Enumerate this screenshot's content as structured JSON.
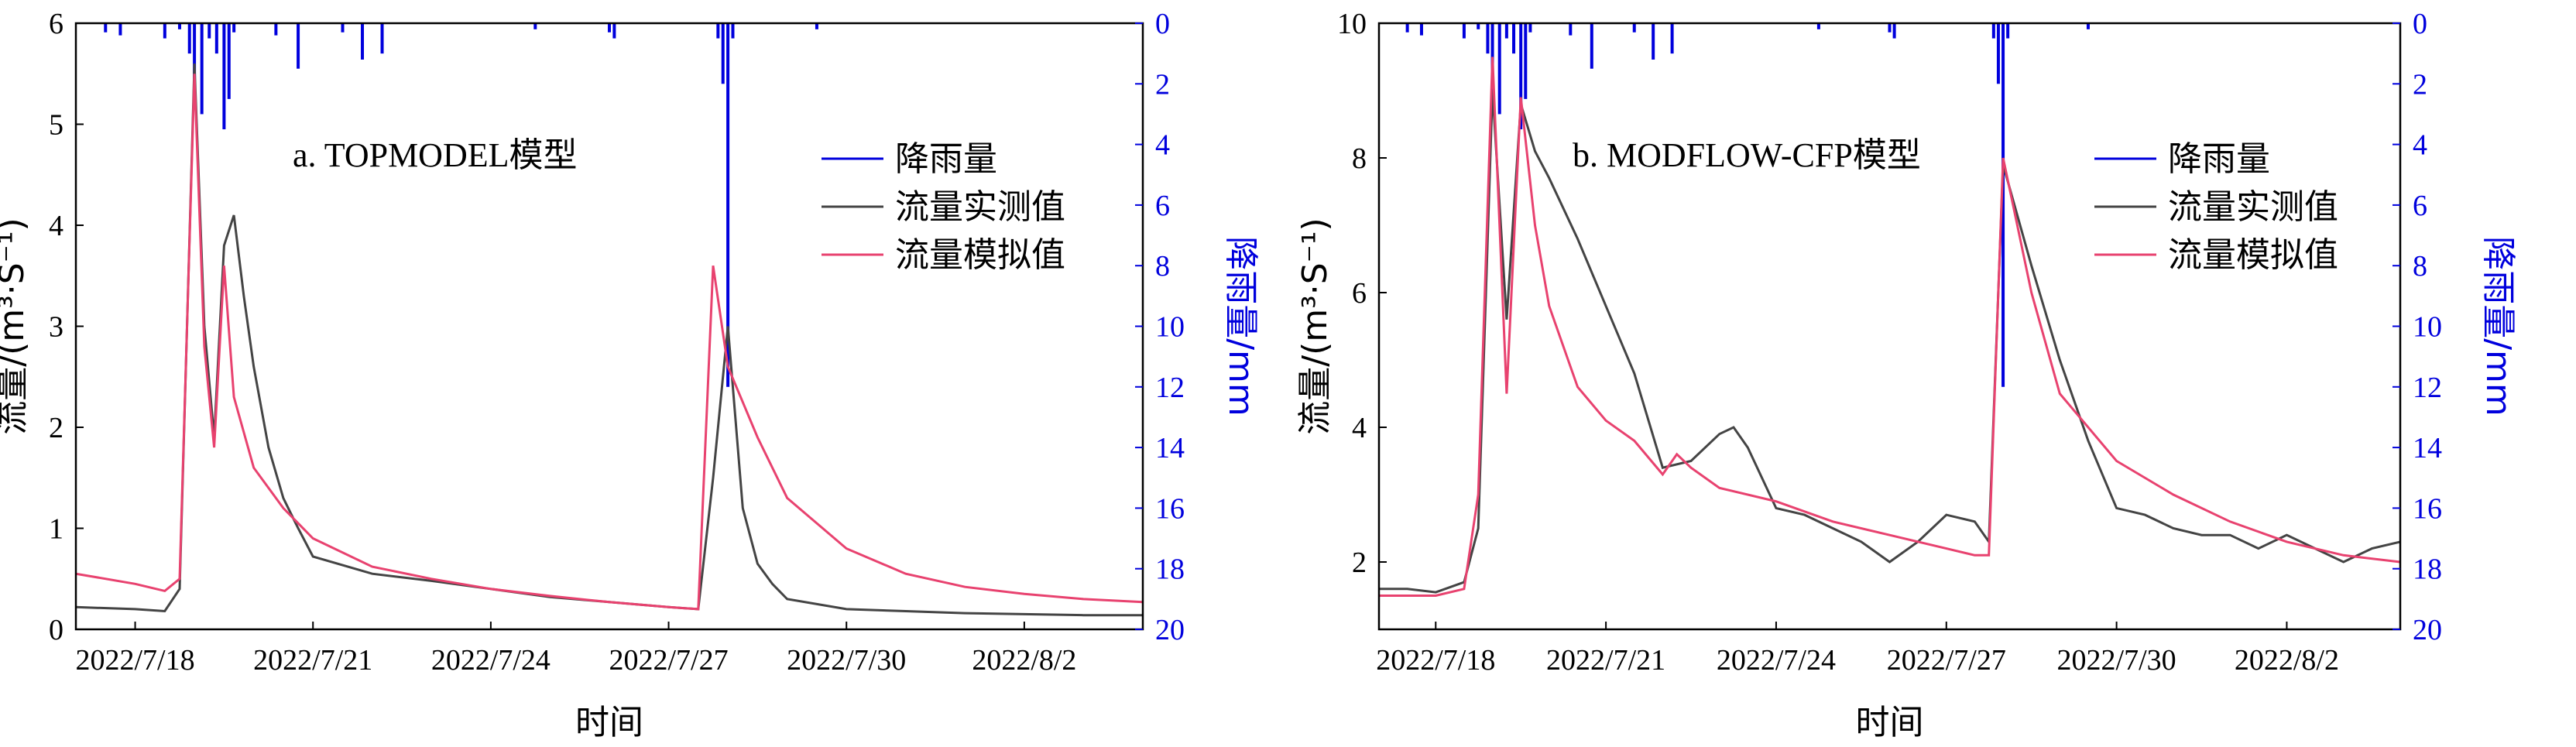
{
  "colors": {
    "observed": "#444444",
    "simulated": "#e8426f",
    "rain": "#0000dd",
    "axis": "#000000"
  },
  "chart_data": [
    {
      "type": "line",
      "title": "a. TOPMODEL模型",
      "xlabel": "时间",
      "ylabel": "流量/(m³·S⁻¹)",
      "ylabel_right": "降雨量/mm",
      "xlim": [
        "2022/7/17",
        "2022/8/4"
      ],
      "ylim": [
        0,
        6
      ],
      "yticks": [
        0,
        1,
        2,
        3,
        4,
        5,
        6
      ],
      "ylim_right": [
        0,
        20
      ],
      "yticks_right": [
        0,
        2,
        4,
        6,
        8,
        10,
        12,
        14,
        16,
        18,
        20
      ],
      "right_axis_inverted": true,
      "xticks": [
        "2022/7/18",
        "2022/7/21",
        "2022/7/24",
        "2022/7/27",
        "2022/7/30",
        "2022/8/2"
      ],
      "legend": {
        "position": "top-right",
        "entries": [
          "降雨量",
          "流量实测值",
          "流量模拟值"
        ]
      },
      "series": [
        {
          "name": "流量实测值",
          "axis": "left",
          "x": [
            "2022/7/17",
            "2022/7/18",
            "2022/7/18 12:00",
            "2022/7/18 18:00",
            "2022/7/19 00:00",
            "2022/7/19 04:00",
            "2022/7/19 08:00",
            "2022/7/19 12:00",
            "2022/7/19 16:00",
            "2022/7/19 20:00",
            "2022/7/20 00:00",
            "2022/7/20 06:00",
            "2022/7/20 12:00",
            "2022/7/20 18:00",
            "2022/7/21",
            "2022/7/22",
            "2022/7/23",
            "2022/7/24",
            "2022/7/25",
            "2022/7/26",
            "2022/7/27",
            "2022/7/27 12:00",
            "2022/7/27 18:00",
            "2022/7/28 00:00",
            "2022/7/28 06:00",
            "2022/7/28 12:00",
            "2022/7/28 18:00",
            "2022/7/29",
            "2022/7/30",
            "2022/7/31",
            "2022/8/1",
            "2022/8/2",
            "2022/8/3",
            "2022/8/4"
          ],
          "y": [
            0.22,
            0.2,
            0.18,
            0.4,
            5.6,
            3.0,
            1.9,
            3.8,
            4.1,
            3.3,
            2.6,
            1.8,
            1.3,
            1.0,
            0.72,
            0.55,
            0.48,
            0.4,
            0.32,
            0.27,
            0.22,
            0.2,
            1.5,
            3.0,
            1.2,
            0.65,
            0.45,
            0.3,
            0.2,
            0.18,
            0.16,
            0.15,
            0.14,
            0.14
          ]
        },
        {
          "name": "流量模拟值",
          "axis": "left",
          "x": [
            "2022/7/17",
            "2022/7/18",
            "2022/7/18 12:00",
            "2022/7/18 18:00",
            "2022/7/19 00:00",
            "2022/7/19 04:00",
            "2022/7/19 08:00",
            "2022/7/19 12:00",
            "2022/7/19 16:00",
            "2022/7/20 00:00",
            "2022/7/20 12:00",
            "2022/7/21",
            "2022/7/22",
            "2022/7/23",
            "2022/7/24",
            "2022/7/25",
            "2022/7/26",
            "2022/7/27",
            "2022/7/27 12:00",
            "2022/7/27 18:00",
            "2022/7/28 00:00",
            "2022/7/28 12:00",
            "2022/7/29",
            "2022/7/30",
            "2022/7/31",
            "2022/8/1",
            "2022/8/2",
            "2022/8/3",
            "2022/8/4"
          ],
          "y": [
            0.55,
            0.45,
            0.38,
            0.5,
            5.5,
            2.8,
            1.8,
            3.6,
            2.3,
            1.6,
            1.2,
            0.9,
            0.62,
            0.5,
            0.4,
            0.33,
            0.27,
            0.22,
            0.2,
            3.6,
            2.6,
            1.9,
            1.3,
            0.8,
            0.55,
            0.42,
            0.35,
            0.3,
            0.27
          ]
        },
        {
          "name": "降雨量",
          "axis": "right",
          "type": "bar",
          "x": [
            "2022/7/17 12:00",
            "2022/7/17 18:00",
            "2022/7/18 12:00",
            "2022/7/18 18:00",
            "2022/7/18 22:00",
            "2022/7/19 00:00",
            "2022/7/19 03:00",
            "2022/7/19 06:00",
            "2022/7/19 09:00",
            "2022/7/19 12:00",
            "2022/7/19 14:00",
            "2022/7/19 16:00",
            "2022/7/20 09:00",
            "2022/7/20 18:00",
            "2022/7/21 12:00",
            "2022/7/21 20:00",
            "2022/7/22 04:00",
            "2022/7/24 18:00",
            "2022/7/26 00:00",
            "2022/7/26 02:00",
            "2022/7/27 20:00",
            "2022/7/27 22:00",
            "2022/7/28 00:00",
            "2022/7/28 02:00",
            "2022/7/29 12:00"
          ],
          "y": [
            0.3,
            0.4,
            0.5,
            0.2,
            1.0,
            2.5,
            3.0,
            0.5,
            1.0,
            3.5,
            2.5,
            0.3,
            0.4,
            1.5,
            0.3,
            1.2,
            1.0,
            0.2,
            0.3,
            0.5,
            0.5,
            2.0,
            12.0,
            0.5,
            0.2
          ]
        }
      ]
    },
    {
      "type": "line",
      "title": "b. MODFLOW-CFP模型",
      "xlabel": "时间",
      "ylabel": "流量/(m³·S⁻¹)",
      "ylabel_right": "降雨量/mm",
      "xlim": [
        "2022/7/17",
        "2022/8/4"
      ],
      "ylim": [
        1,
        10
      ],
      "yticks": [
        2,
        4,
        6,
        8,
        10
      ],
      "ylim_right": [
        0,
        20
      ],
      "yticks_right": [
        0,
        2,
        4,
        6,
        8,
        10,
        12,
        14,
        16,
        18,
        20
      ],
      "right_axis_inverted": true,
      "xticks": [
        "2022/7/18",
        "2022/7/21",
        "2022/7/24",
        "2022/7/27",
        "2022/7/30",
        "2022/8/2"
      ],
      "legend": {
        "position": "top-right",
        "entries": [
          "降雨量",
          "流量实测值",
          "流量模拟值"
        ]
      },
      "series": [
        {
          "name": "流量实测值",
          "axis": "left",
          "x": [
            "2022/7/17",
            "2022/7/17 12:00",
            "2022/7/18",
            "2022/7/18 12:00",
            "2022/7/18 18:00",
            "2022/7/19 00:00",
            "2022/7/19 06:00",
            "2022/7/19 12:00",
            "2022/7/19 18:00",
            "2022/7/20 00:00",
            "2022/7/20 12:00",
            "2022/7/21",
            "2022/7/21 12:00",
            "2022/7/22",
            "2022/7/22 12:00",
            "2022/7/23",
            "2022/7/23 06:00",
            "2022/7/23 12:00",
            "2022/7/24",
            "2022/7/24 12:00",
            "2022/7/25",
            "2022/7/25 12:00",
            "2022/7/26",
            "2022/7/26 12:00",
            "2022/7/27",
            "2022/7/27 12:00",
            "2022/7/27 18:00",
            "2022/7/28 00:00",
            "2022/7/28 12:00",
            "2022/7/29",
            "2022/7/29 12:00",
            "2022/7/30",
            "2022/7/30 12:00",
            "2022/7/31",
            "2022/7/31 12:00",
            "2022/8/1",
            "2022/8/1 12:00",
            "2022/8/2",
            "2022/8/2 12:00",
            "2022/8/3",
            "2022/8/3 12:00",
            "2022/8/4"
          ],
          "y": [
            1.6,
            1.6,
            1.55,
            1.7,
            2.5,
            9.0,
            5.6,
            8.8,
            8.1,
            7.7,
            6.8,
            5.8,
            4.8,
            3.4,
            3.5,
            3.9,
            4.0,
            3.7,
            2.8,
            2.7,
            2.5,
            2.3,
            2.0,
            2.3,
            2.7,
            2.6,
            2.3,
            7.9,
            6.4,
            5.0,
            3.8,
            2.8,
            2.7,
            2.5,
            2.4,
            2.4,
            2.2,
            2.4,
            2.2,
            2.0,
            2.2,
            2.3
          ]
        },
        {
          "name": "流量模拟值",
          "axis": "left",
          "x": [
            "2022/7/17",
            "2022/7/17 12:00",
            "2022/7/18",
            "2022/7/18 12:00",
            "2022/7/18 18:00",
            "2022/7/19 00:00",
            "2022/7/19 06:00",
            "2022/7/19 12:00",
            "2022/7/19 18:00",
            "2022/7/20 00:00",
            "2022/7/20 12:00",
            "2022/7/21",
            "2022/7/21 12:00",
            "2022/7/22",
            "2022/7/22 06:00",
            "2022/7/22 12:00",
            "2022/7/23",
            "2022/7/24",
            "2022/7/25",
            "2022/7/26",
            "2022/7/27",
            "2022/7/27 12:00",
            "2022/7/27 18:00",
            "2022/7/28 00:00",
            "2022/7/28 12:00",
            "2022/7/29",
            "2022/7/30",
            "2022/7/31",
            "2022/8/1",
            "2022/8/2",
            "2022/8/3",
            "2022/8/4"
          ],
          "y": [
            1.5,
            1.5,
            1.5,
            1.6,
            3.0,
            9.5,
            4.5,
            8.9,
            7.0,
            5.8,
            4.6,
            4.1,
            3.8,
            3.3,
            3.6,
            3.4,
            3.1,
            2.9,
            2.6,
            2.4,
            2.2,
            2.1,
            2.1,
            8.0,
            6.0,
            4.5,
            3.5,
            3.0,
            2.6,
            2.3,
            2.1,
            2.0
          ]
        },
        {
          "name": "降雨量",
          "axis": "right",
          "type": "bar",
          "x": [
            "2022/7/17 12:00",
            "2022/7/17 18:00",
            "2022/7/18 12:00",
            "2022/7/18 18:00",
            "2022/7/18 22:00",
            "2022/7/19 00:00",
            "2022/7/19 03:00",
            "2022/7/19 06:00",
            "2022/7/19 09:00",
            "2022/7/19 12:00",
            "2022/7/19 14:00",
            "2022/7/19 16:00",
            "2022/7/20 09:00",
            "2022/7/20 18:00",
            "2022/7/21 12:00",
            "2022/7/21 20:00",
            "2022/7/22 04:00",
            "2022/7/24 18:00",
            "2022/7/26 00:00",
            "2022/7/26 02:00",
            "2022/7/27 20:00",
            "2022/7/27 22:00",
            "2022/7/28 00:00",
            "2022/7/28 02:00",
            "2022/7/29 12:00"
          ],
          "y": [
            0.3,
            0.4,
            0.5,
            0.2,
            1.0,
            2.5,
            3.0,
            0.5,
            1.0,
            3.5,
            2.5,
            0.3,
            0.4,
            1.5,
            0.3,
            1.2,
            1.0,
            0.2,
            0.3,
            0.5,
            0.5,
            2.0,
            12.0,
            0.5,
            0.2
          ]
        }
      ]
    }
  ]
}
